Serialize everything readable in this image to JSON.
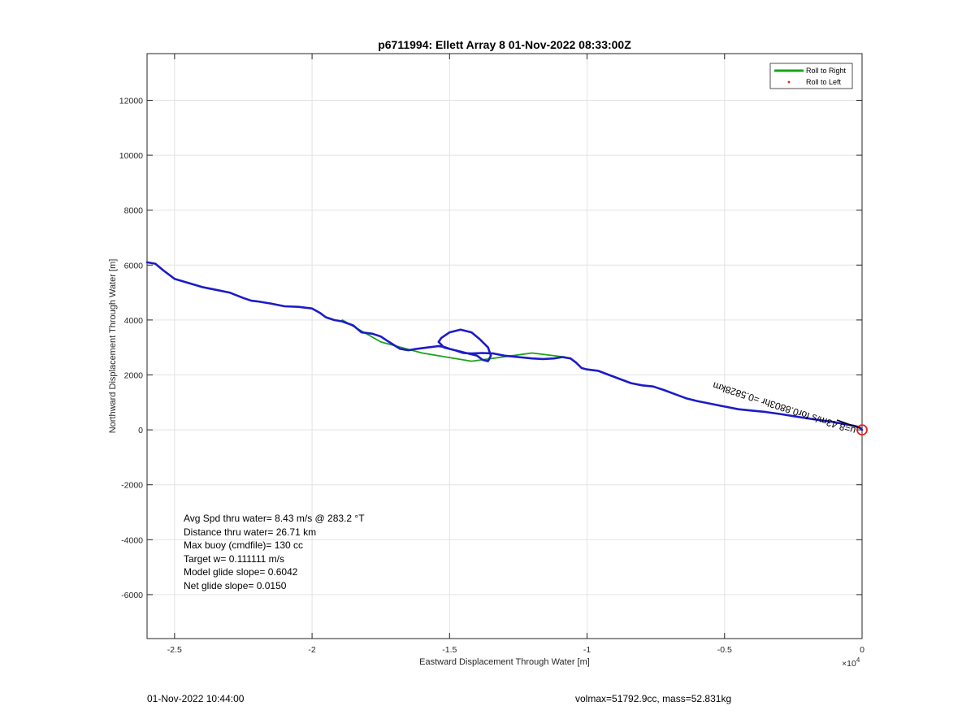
{
  "chart_data": {
    "type": "line",
    "title": "p6711994: Ellett Array 8 01-Nov-2022 08:33:00Z",
    "xlabel": "Eastward Displacement Through Water [m]",
    "ylabel": "Northward Displacement Through Water [m]",
    "x_exponent_label": "×10",
    "x_exponent": "4",
    "xlim": [
      -26000,
      0
    ],
    "ylim": [
      -7600,
      13700
    ],
    "xticks": [
      -25000,
      -20000,
      -15000,
      -10000,
      -5000,
      0
    ],
    "xtick_labels": [
      "-2.5",
      "-2",
      "-1.5",
      "-1",
      "-0.5",
      "0"
    ],
    "yticks": [
      -6000,
      -4000,
      -2000,
      0,
      2000,
      4000,
      6000,
      8000,
      10000,
      12000
    ],
    "ytick_labels": [
      "-6000",
      "-4000",
      "-2000",
      "0",
      "2000",
      "4000",
      "6000",
      "8000",
      "10000",
      "12000"
    ],
    "grid": true,
    "legend_position": "top-right",
    "legend": [
      {
        "label": "Roll to Right",
        "color": "#1aa31a",
        "marker": "line"
      },
      {
        "label": "Roll to Left",
        "color": "#e8201a",
        "marker": "dot"
      }
    ],
    "series": [
      {
        "name": "Roll to Right",
        "color": "#1aa31a",
        "x": [
          -18900,
          -17500,
          -16000,
          -14200,
          -12000,
          -10800
        ],
        "y": [
          4000,
          3200,
          2800,
          2500,
          2800,
          2650
        ]
      },
      {
        "name": "track",
        "color": "#1b1bc9",
        "x": [
          -26000,
          -25700,
          -25400,
          -25000,
          -24500,
          -24000,
          -23500,
          -23000,
          -22500,
          -22200,
          -22000,
          -21500,
          -21000,
          -20500,
          -20000,
          -19700,
          -19500,
          -19200,
          -18900,
          -18500,
          -18200,
          -17800,
          -17500,
          -17200,
          -16800,
          -16500,
          -16200,
          -15800,
          -15400,
          -15200,
          -15000,
          -14800,
          -14600,
          -14400,
          -14200,
          -14000,
          -13800,
          -13600,
          -13500,
          -13600,
          -13900,
          -14200,
          -14600,
          -15000,
          -15300,
          -15400,
          -15200,
          -14800,
          -14500,
          -14200,
          -13800,
          -13400,
          -13000,
          -12500,
          -12000,
          -11600,
          -11200,
          -10900,
          -10600,
          -10400,
          -10200,
          -10000,
          -9600,
          -9200,
          -8800,
          -8400,
          -8000,
          -7600,
          -7200,
          -6800,
          -6400,
          -6000,
          -5500,
          -5000,
          -4500,
          -4000,
          -3500,
          -3000,
          -2500,
          -2000,
          -1500,
          -1000,
          -600,
          -300,
          -100,
          0
        ],
        "y": [
          6100,
          6050,
          5800,
          5500,
          5350,
          5200,
          5100,
          5000,
          4800,
          4700,
          4680,
          4600,
          4500,
          4480,
          4420,
          4250,
          4100,
          4000,
          3950,
          3800,
          3550,
          3500,
          3400,
          3200,
          2950,
          2900,
          2950,
          3000,
          3050,
          3020,
          2950,
          2900,
          2850,
          2800,
          2750,
          2700,
          2550,
          2500,
          2700,
          3000,
          3300,
          3550,
          3650,
          3550,
          3350,
          3200,
          3000,
          2900,
          2800,
          2780,
          2800,
          2780,
          2700,
          2650,
          2600,
          2580,
          2600,
          2650,
          2600,
          2450,
          2250,
          2200,
          2150,
          2000,
          1850,
          1700,
          1620,
          1580,
          1450,
          1300,
          1150,
          1050,
          950,
          850,
          750,
          700,
          650,
          580,
          500,
          420,
          350,
          280,
          200,
          150,
          100,
          0
        ]
      }
    ],
    "start_marker": {
      "x": 0,
      "y": 0,
      "color": "#e8201a"
    },
    "current_arrow_label": "u=8.43m/s for0.8803hr =0.5828km",
    "stats_lines": [
      "Avg Spd thru water=  8.43 m/s @ 283.2 °T",
      "Distance thru water= 26.71 km",
      "Max buoy (cmdfile)= 130 cc",
      "Target w= 0.111111 m/s",
      "Model glide slope= 0.6042",
      "Net glide slope= 0.0150"
    ],
    "footer_left": "01-Nov-2022 10:44:00",
    "footer_right": "volmax=51792.9cc, mass=52.831kg"
  }
}
